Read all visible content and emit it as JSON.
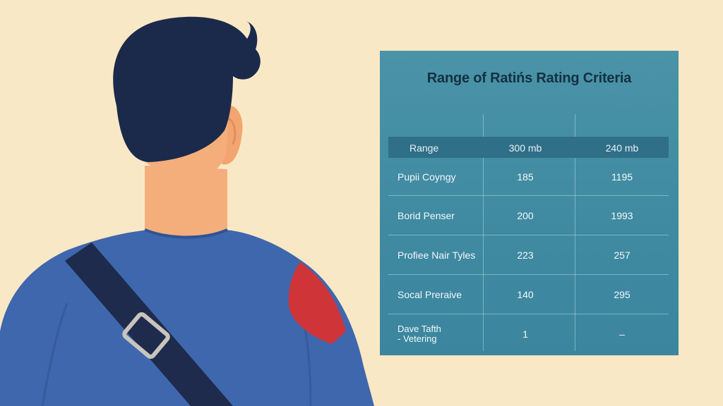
{
  "board": {
    "title": "Range of Ratińs Rating Criteria",
    "header": [
      "Range",
      "300 mb",
      "240 mb"
    ],
    "rows": [
      [
        "Pupii Coyngy",
        "185",
        "1195"
      ],
      [
        "Borid Penser",
        "200",
        "1993"
      ],
      [
        "Profiee Nair Tyles",
        "223",
        "257"
      ],
      [
        "Socal Preraive",
        "140",
        "295"
      ]
    ],
    "last_row": {
      "label_line1": "Dave Tafth",
      "label_line2": "- Vetering",
      "col2": "1",
      "col3": "–"
    }
  },
  "colors": {
    "background": "#f9e8c6",
    "board": "#4a93a8",
    "board_header": "#2f6f87",
    "hair": "#1b2a4a",
    "skin": "#f4ae7c",
    "shirt": "#3f67ad",
    "strap": "#1e2b4c",
    "shoulder_patch": "#cf3438"
  }
}
